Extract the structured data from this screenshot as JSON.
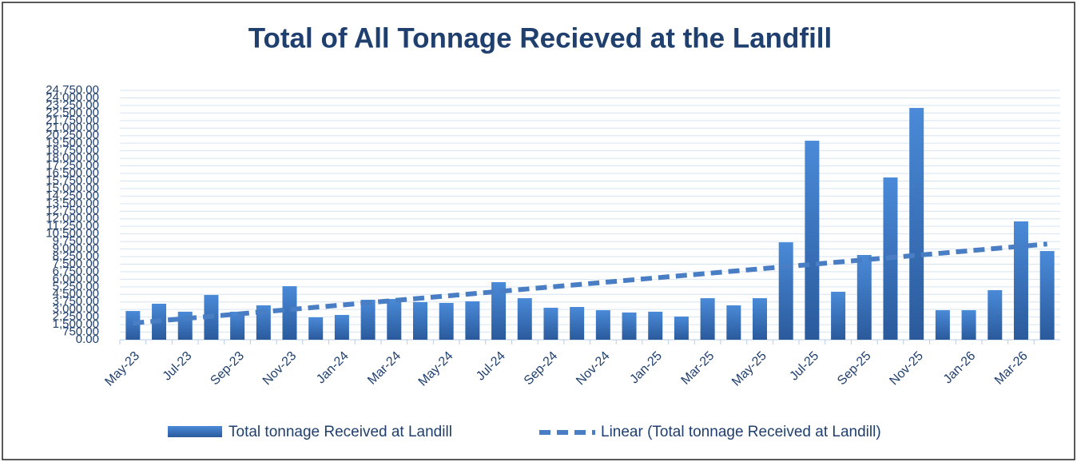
{
  "chart_data": {
    "type": "bar",
    "title": "Total of All Tonnage Recieved at the Landfill",
    "categories": [
      "May-23",
      null,
      "Jul-23",
      null,
      "Sep-23",
      null,
      "Nov-23",
      null,
      "Jan-24",
      null,
      "Mar-24",
      null,
      "May-24",
      null,
      "Jul-24",
      null,
      "Sep-24",
      null,
      "Nov-24",
      null,
      "Jan-25",
      null,
      "Mar-25",
      null,
      "May-25",
      null,
      "Jul-25",
      null,
      "Sep-25",
      null,
      "Nov-25",
      null,
      "Jan-26",
      null,
      "Mar-26",
      null
    ],
    "series": [
      {
        "name": "Total tonnage Received at Landill",
        "color": "#3a77c7",
        "values": [
          2850,
          3570,
          2780,
          4440,
          2780,
          3410,
          5310,
          2220,
          2460,
          3965,
          4040,
          3730,
          3650,
          3810,
          5710,
          4120,
          3170,
          3250,
          2930,
          2700,
          2780,
          2300,
          4120,
          3410,
          4120,
          9670,
          19750,
          4760,
          8410,
          16100,
          23000,
          2930,
          2930,
          4920,
          11740,
          8800
        ]
      }
    ],
    "trendline": {
      "name": "Linear (Total tonnage Received at Landill)",
      "color": "#4a7ec4"
    },
    "ylim": [
      0,
      24750
    ],
    "yticks": [
      {
        "value": 0,
        "label": "0.00"
      },
      {
        "value": 750,
        "label": "750.00"
      },
      {
        "value": 1500,
        "label": "1,500.00"
      },
      {
        "value": 2250,
        "label": "2,250.00"
      },
      {
        "value": 3000,
        "label": "3,000.00"
      },
      {
        "value": 3750,
        "label": "3,750.00"
      },
      {
        "value": 4500,
        "label": "4,500.00"
      },
      {
        "value": 5250,
        "label": "5,250.00"
      },
      {
        "value": 6000,
        "label": "6,000.00"
      },
      {
        "value": 6750,
        "label": "6,750.00"
      },
      {
        "value": 7500,
        "label": "7,500.00"
      },
      {
        "value": 8250,
        "label": "8,250.00"
      },
      {
        "value": 9000,
        "label": "9,000.00"
      },
      {
        "value": 9750,
        "label": "9,750.00"
      },
      {
        "value": 10500,
        "label": "10,500.00"
      },
      {
        "value": 11250,
        "label": "11,250.00"
      },
      {
        "value": 12000,
        "label": "12,000.00"
      },
      {
        "value": 12750,
        "label": "12,750.00"
      },
      {
        "value": 13500,
        "label": "13,500.00"
      },
      {
        "value": 14250,
        "label": "14,250.00"
      },
      {
        "value": 15000,
        "label": "15,000.00"
      },
      {
        "value": 15750,
        "label": "15,750.00"
      },
      {
        "value": 16500,
        "label": "16,500.00"
      },
      {
        "value": 17250,
        "label": "17,250.00"
      },
      {
        "value": 18000,
        "label": "18,000.00"
      },
      {
        "value": 18750,
        "label": "18,750.00"
      },
      {
        "value": 19500,
        "label": "19,500.00"
      },
      {
        "value": 20250,
        "label": "20,250.00"
      },
      {
        "value": 21000,
        "label": "21,000.00"
      },
      {
        "value": 21750,
        "label": "21,750.00"
      },
      {
        "value": 22500,
        "label": "22,500.00"
      },
      {
        "value": 23250,
        "label": "23,250.00"
      },
      {
        "value": 24000,
        "label": "24,000.00"
      },
      {
        "value": 24750,
        "label": "24,750.00"
      }
    ],
    "grid": true
  }
}
